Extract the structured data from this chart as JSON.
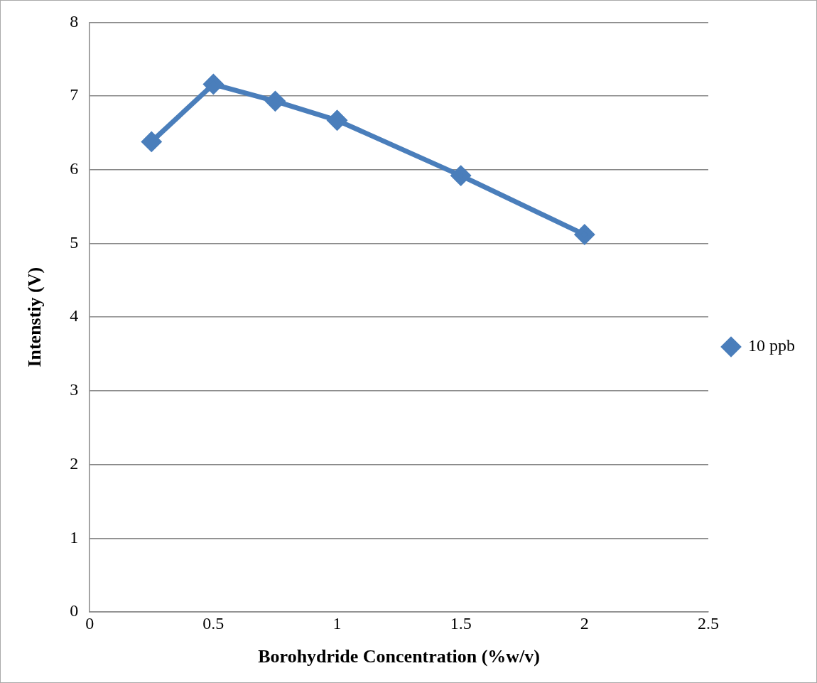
{
  "chart_data": {
    "type": "line",
    "xlabel": "Borohydride Concentration (%w/v)",
    "ylabel": "Intenstiy (V)",
    "x": [
      0.25,
      0.5,
      0.75,
      1,
      1.5,
      2
    ],
    "series": [
      {
        "name": "10 ppb",
        "color": "#4a7ebb",
        "values": [
          6.38,
          7.16,
          6.93,
          6.67,
          5.92,
          5.12
        ]
      }
    ],
    "xlim": [
      0,
      2.5
    ],
    "xticks": [
      0,
      0.5,
      1,
      1.5,
      2,
      2.5
    ],
    "ylim": [
      0,
      8
    ],
    "yticks": [
      0,
      1,
      2,
      3,
      4,
      5,
      6,
      7,
      8
    ],
    "grid": "y",
    "legend": "right",
    "marker": "diamond",
    "line_style": "solid"
  }
}
